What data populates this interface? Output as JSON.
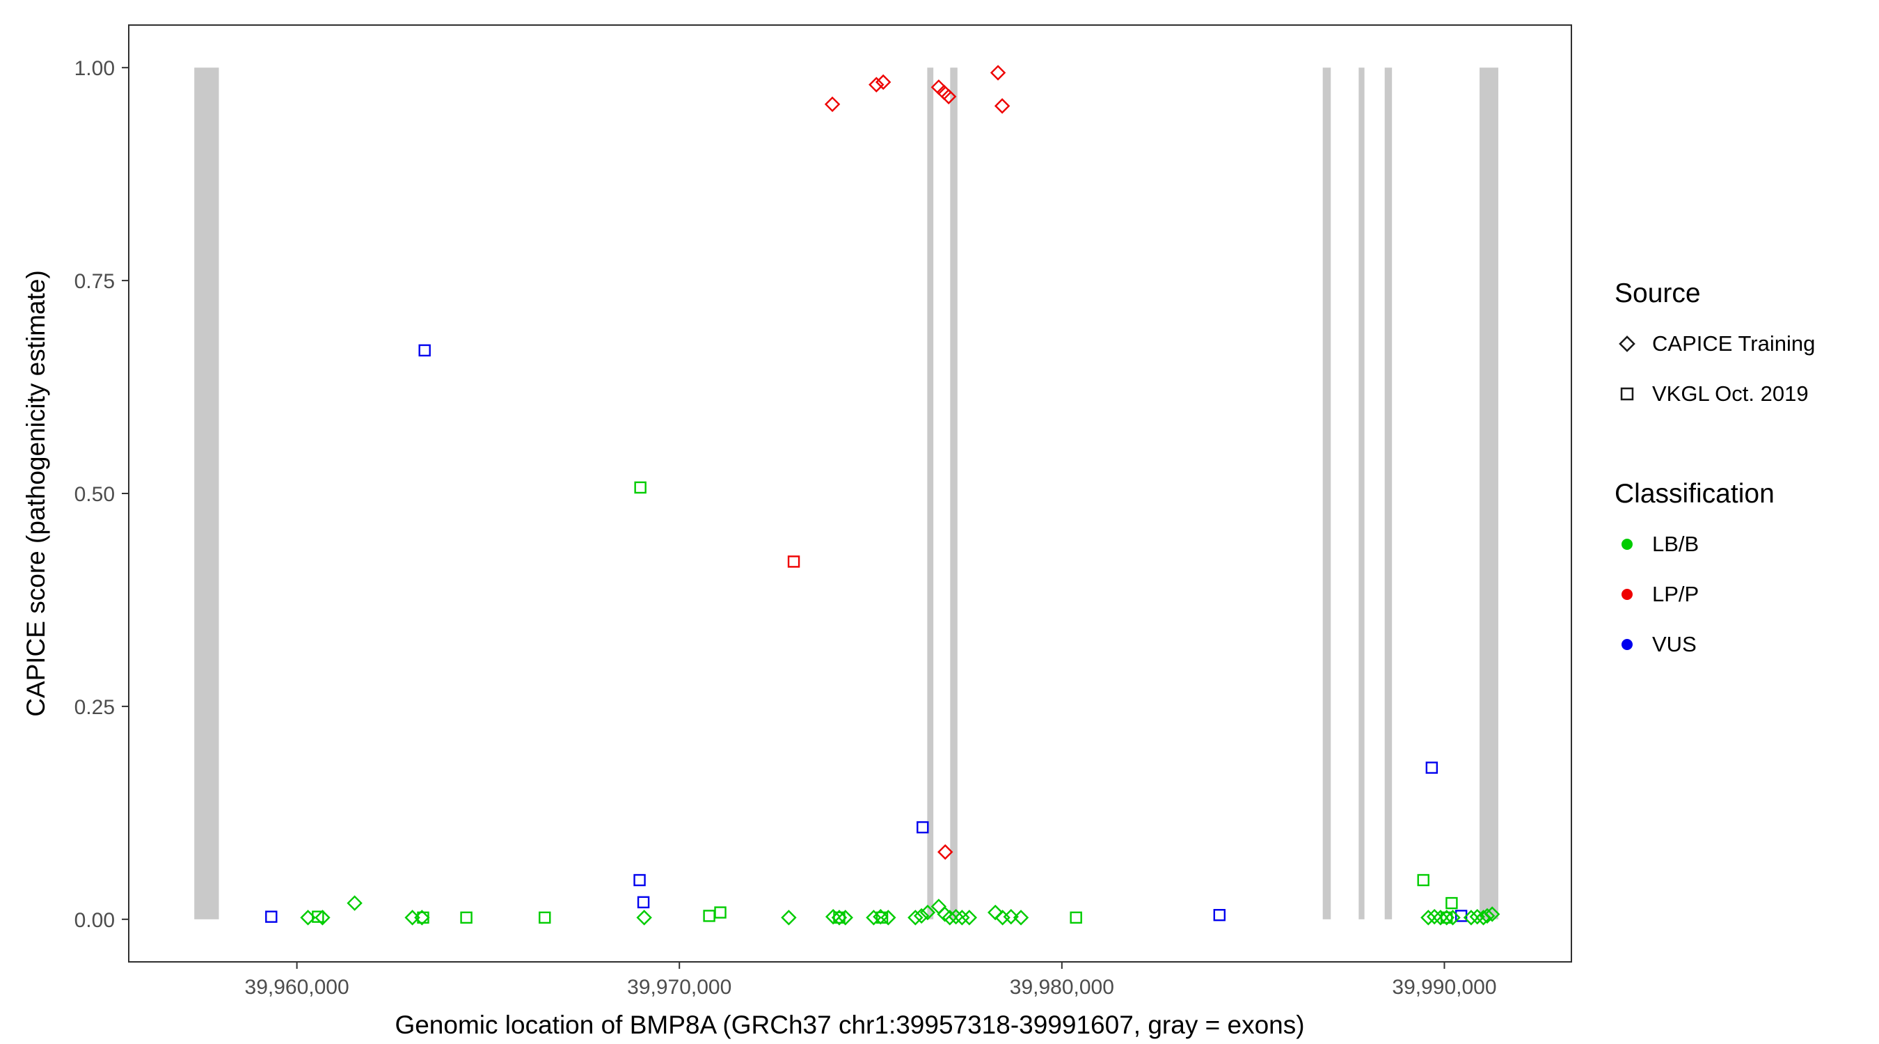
{
  "colors": {
    "exon": "#C9C9C9",
    "panel_border": "#2f2f2f",
    "tick": "#333333"
  },
  "legend": {
    "source": {
      "title": "Source",
      "items": [
        {
          "label": "CAPICE Training",
          "shape": "diamond"
        },
        {
          "label": "VKGL Oct. 2019",
          "shape": "square"
        }
      ]
    },
    "classification": {
      "title": "Classification",
      "items": [
        {
          "label": "LB/B",
          "color": "#00CC00"
        },
        {
          "label": "LP/P",
          "color": "#EE0000"
        },
        {
          "label": "VUS",
          "color": "#0000EE"
        }
      ]
    }
  },
  "chart_data": {
    "type": "scatter",
    "title": "",
    "xlabel": "Genomic location of BMP8A (GRCh37 chr1:39957318-39991607, gray = exons)",
    "ylabel": "CAPICE score (pathogenicity estimate)",
    "xlim": [
      39955604,
      39993321
    ],
    "ylim": [
      -0.05,
      1.05
    ],
    "grid": false,
    "legend_position": "right",
    "x_ticks": [
      {
        "value": 39960000,
        "label": "39,960,000"
      },
      {
        "value": 39970000,
        "label": "39,970,000"
      },
      {
        "value": 39980000,
        "label": "39,980,000"
      },
      {
        "value": 39990000,
        "label": "39,990,000"
      }
    ],
    "y_ticks": [
      {
        "value": 0.0,
        "label": "0.00"
      },
      {
        "value": 0.25,
        "label": "0.25"
      },
      {
        "value": 0.5,
        "label": "0.50"
      },
      {
        "value": 0.75,
        "label": "0.75"
      },
      {
        "value": 1.0,
        "label": "1.00"
      }
    ],
    "exons": [
      [
        39957318,
        39957960
      ],
      [
        39976480,
        39976640
      ],
      [
        39977080,
        39977270
      ],
      [
        39986820,
        39987030
      ],
      [
        39987760,
        39987910
      ],
      [
        39988440,
        39988630
      ],
      [
        39990920,
        39991410
      ]
    ],
    "series": [
      {
        "name": "CAPICE Training / LP/P",
        "source": "CAPICE Training",
        "classification": "LP/P",
        "shape": "diamond",
        "points": [
          [
            39974000,
            0.957
          ],
          [
            39975150,
            0.98
          ],
          [
            39975330,
            0.983
          ],
          [
            39976780,
            0.977
          ],
          [
            39976920,
            0.971
          ],
          [
            39977040,
            0.966
          ],
          [
            39978330,
            0.994
          ],
          [
            39978440,
            0.955
          ],
          [
            39976950,
            0.079
          ]
        ]
      },
      {
        "name": "VKGL Oct. 2019 / LP/P",
        "source": "VKGL Oct. 2019",
        "classification": "LP/P",
        "shape": "square",
        "points": [
          [
            39972990,
            0.42
          ]
        ]
      },
      {
        "name": "VKGL Oct. 2019 / VUS",
        "source": "VKGL Oct. 2019",
        "classification": "VUS",
        "shape": "square",
        "points": [
          [
            39959330,
            0.003
          ],
          [
            39963340,
            0.668
          ],
          [
            39968960,
            0.046
          ],
          [
            39969060,
            0.02
          ],
          [
            39976360,
            0.108
          ],
          [
            39984120,
            0.005
          ],
          [
            39989670,
            0.178
          ],
          [
            39990440,
            0.004
          ]
        ]
      },
      {
        "name": "VKGL Oct. 2019 / LB/B",
        "source": "VKGL Oct. 2019",
        "classification": "LB/B",
        "shape": "square",
        "points": [
          [
            39968980,
            0.507
          ],
          [
            39960550,
            0.003
          ],
          [
            39963300,
            0.002
          ],
          [
            39964430,
            0.002
          ],
          [
            39966480,
            0.002
          ],
          [
            39970780,
            0.004
          ],
          [
            39971070,
            0.008
          ],
          [
            39974180,
            0.002
          ],
          [
            39975300,
            0.002
          ],
          [
            39980370,
            0.002
          ],
          [
            39989450,
            0.046
          ],
          [
            39990190,
            0.019
          ],
          [
            39990060,
            0.002
          ]
        ]
      },
      {
        "name": "CAPICE Training / LB/B",
        "source": "CAPICE Training",
        "classification": "LB/B",
        "shape": "diamond",
        "points": [
          [
            39960290,
            0.002
          ],
          [
            39960670,
            0.002
          ],
          [
            39961510,
            0.019
          ],
          [
            39963020,
            0.002
          ],
          [
            39963270,
            0.002
          ],
          [
            39969080,
            0.002
          ],
          [
            39972860,
            0.002
          ],
          [
            39974020,
            0.003
          ],
          [
            39974180,
            0.002
          ],
          [
            39974340,
            0.002
          ],
          [
            39975080,
            0.002
          ],
          [
            39975260,
            0.003
          ],
          [
            39975460,
            0.002
          ],
          [
            39976170,
            0.002
          ],
          [
            39976330,
            0.004
          ],
          [
            39976490,
            0.008
          ],
          [
            39976780,
            0.015
          ],
          [
            39976940,
            0.006
          ],
          [
            39977070,
            0.002
          ],
          [
            39977230,
            0.003
          ],
          [
            39977390,
            0.002
          ],
          [
            39977580,
            0.002
          ],
          [
            39978260,
            0.008
          ],
          [
            39978450,
            0.002
          ],
          [
            39978670,
            0.003
          ],
          [
            39978930,
            0.002
          ],
          [
            39989580,
            0.002
          ],
          [
            39989740,
            0.003
          ],
          [
            39989900,
            0.002
          ],
          [
            39990060,
            0.002
          ],
          [
            39990220,
            0.002
          ],
          [
            39990700,
            0.002
          ],
          [
            39990860,
            0.003
          ],
          [
            39991020,
            0.002
          ],
          [
            39991120,
            0.004
          ],
          [
            39991250,
            0.006
          ]
        ]
      }
    ]
  }
}
